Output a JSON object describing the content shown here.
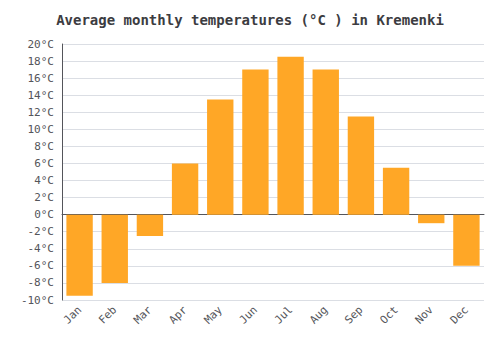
{
  "chart_data": {
    "type": "bar",
    "title": "Average monthly temperatures (°C ) in Kremenki",
    "categories": [
      "Jan",
      "Feb",
      "Mar",
      "Apr",
      "May",
      "Jun",
      "Jul",
      "Aug",
      "Sep",
      "Oct",
      "Nov",
      "Dec"
    ],
    "values": [
      -9.5,
      -8.0,
      -2.5,
      6.0,
      13.5,
      17.0,
      18.5,
      17.0,
      11.5,
      5.5,
      -1.0,
      -6.0
    ],
    "color": "#FFA726",
    "ylim": [
      -10,
      20
    ],
    "yticks": [
      {
        "value": -10,
        "label": "-10°C"
      },
      {
        "value": -8,
        "label": "-8°C"
      },
      {
        "value": -6,
        "label": "-6°C"
      },
      {
        "value": -4,
        "label": "-4°C"
      },
      {
        "value": -2,
        "label": "-2°C"
      },
      {
        "value": 0,
        "label": "0°C"
      },
      {
        "value": 2,
        "label": "2°C"
      },
      {
        "value": 4,
        "label": "4°C"
      },
      {
        "value": 6,
        "label": "6°C"
      },
      {
        "value": 8,
        "label": "8°C"
      },
      {
        "value": 10,
        "label": "10°C"
      },
      {
        "value": 12,
        "label": "12°C"
      },
      {
        "value": 14,
        "label": "14°C"
      },
      {
        "value": 16,
        "label": "16°C"
      },
      {
        "value": 18,
        "label": "18°C"
      },
      {
        "value": 20,
        "label": "20°C"
      }
    ],
    "grid": true
  }
}
